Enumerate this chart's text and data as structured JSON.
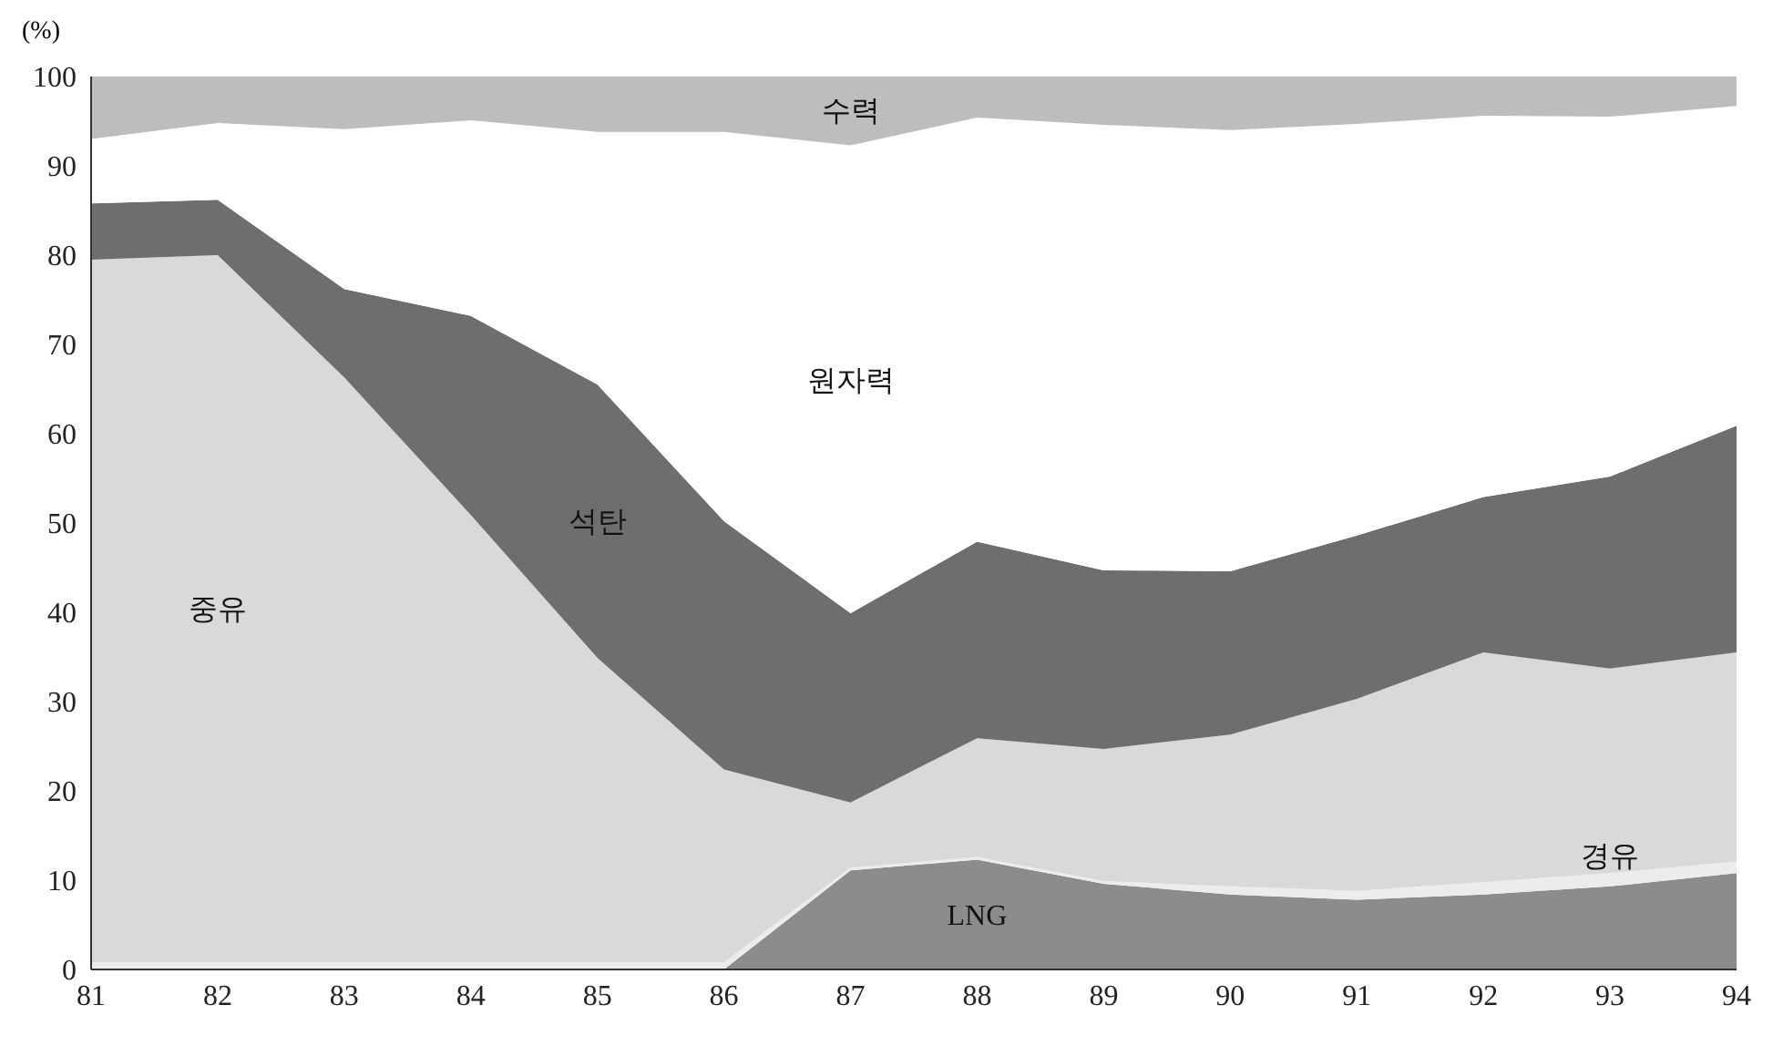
{
  "chart_data": {
    "type": "area",
    "stacked": true,
    "ylabel": "(%)",
    "x": [
      81,
      82,
      83,
      84,
      85,
      86,
      87,
      88,
      89,
      90,
      91,
      92,
      93,
      94
    ],
    "xlim": [
      81,
      94
    ],
    "xticks": [
      81,
      82,
      83,
      84,
      85,
      86,
      87,
      88,
      89,
      90,
      91,
      92,
      93,
      94
    ],
    "ylim": [
      0,
      100
    ],
    "yticks": [
      0,
      10,
      20,
      30,
      40,
      50,
      60,
      70,
      80,
      90,
      100
    ],
    "grid": false,
    "legend": false,
    "series": [
      {
        "name": "LNG",
        "color": "#8c8c8c",
        "values": [
          0,
          0,
          0,
          0,
          0,
          0,
          11.1,
          12.3,
          9.6,
          8.4,
          7.8,
          8.4,
          9.3,
          10.8
        ]
      },
      {
        "name": "경유",
        "color": "#ececec",
        "values": [
          0.8,
          0.8,
          0.8,
          0.8,
          0.8,
          0.8,
          0.3,
          0.3,
          0.3,
          0.9,
          1.0,
          1.4,
          1.5,
          1.3
        ]
      },
      {
        "name": "중유",
        "color": "#d9d9d9",
        "values": [
          78.7,
          79.2,
          65.5,
          50.1,
          34.1,
          21.6,
          7.3,
          13.3,
          14.8,
          17.0,
          21.5,
          25.7,
          22.9,
          23.4
        ]
      },
      {
        "name": "석탄",
        "color": "#6e6e6e",
        "values": [
          6.3,
          6.2,
          9.9,
          22.3,
          30.6,
          27.8,
          21.2,
          22.0,
          20.0,
          18.3,
          18.3,
          17.4,
          21.5,
          25.4
        ]
      },
      {
        "name": "원자력",
        "color": "#ffffff",
        "values": [
          7.2,
          8.6,
          17.9,
          21.9,
          28.3,
          43.6,
          52.4,
          47.5,
          49.9,
          49.4,
          46.1,
          42.7,
          40.3,
          35.8
        ]
      },
      {
        "name": "수력",
        "color": "#bdbdbd",
        "values": [
          7.0,
          5.2,
          5.9,
          4.9,
          6.2,
          6.2,
          8.0,
          4.9,
          5.5,
          6.0,
          5.3,
          4.4,
          4.5,
          3.3
        ]
      }
    ]
  }
}
